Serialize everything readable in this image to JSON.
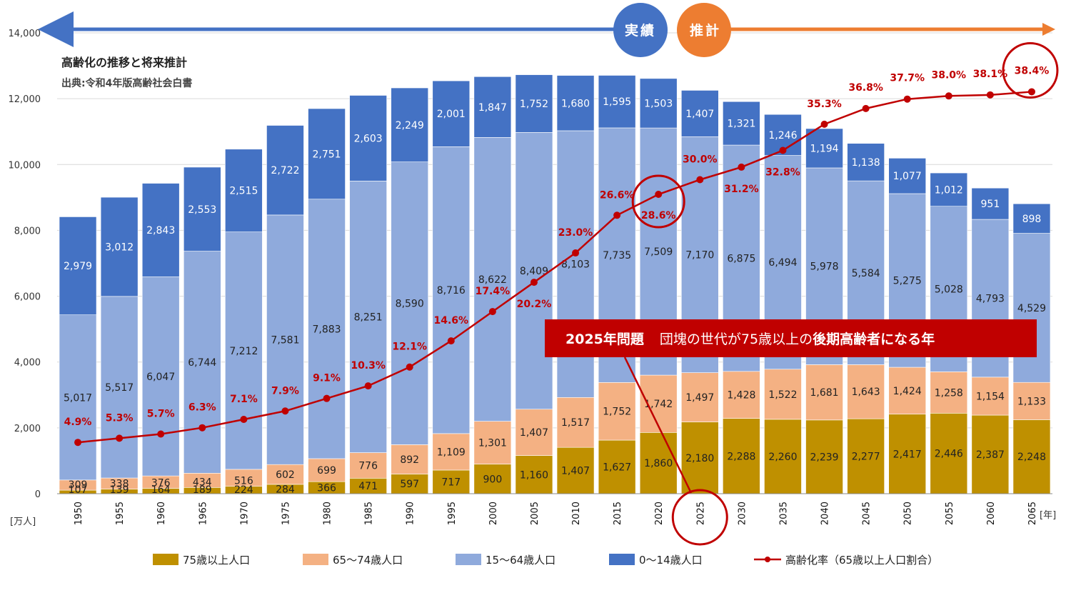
{
  "chart_data": {
    "type": "bar",
    "stacked": true,
    "title": "高齢化の推移と将来推計",
    "subtitle": "出典:令和4年版高齢社会白書",
    "y_unit_label": "[万人]",
    "x_unit_label": "[年]",
    "ylim": [
      0,
      14000
    ],
    "yticks": [
      "0",
      "2,000",
      "4,000",
      "6,000",
      "8,000",
      "10,000",
      "12,000",
      "14,000"
    ],
    "ytick_values": [
      0,
      2000,
      4000,
      6000,
      8000,
      10000,
      12000,
      14000
    ],
    "categories": [
      "1950",
      "1955",
      "1960",
      "1965",
      "1970",
      "1975",
      "1980",
      "1985",
      "1990",
      "1995",
      "2000",
      "2005",
      "2010",
      "2015",
      "2020",
      "2025",
      "2030",
      "2035",
      "2040",
      "2045",
      "2050",
      "2055",
      "2060",
      "2065"
    ],
    "series": [
      {
        "name": "75歳以上人口",
        "color": "#bf9000",
        "values": [
          107,
          139,
          164,
          189,
          224,
          284,
          366,
          471,
          597,
          717,
          900,
          1160,
          1407,
          1627,
          1860,
          2180,
          2288,
          2260,
          2239,
          2277,
          2417,
          2446,
          2387,
          2248
        ],
        "labels": [
          "107",
          "139",
          "164",
          "189",
          "224",
          "284",
          "366",
          "471",
          "597",
          "717",
          "900",
          "1,160",
          "1,407",
          "1,627",
          "1,860",
          "2,180",
          "2,288",
          "2,260",
          "2,239",
          "2,277",
          "2,417",
          "2,446",
          "2,387",
          "2,248"
        ]
      },
      {
        "name": "65～74歳人口",
        "color": "#f4b183",
        "values": [
          309,
          338,
          376,
          434,
          516,
          602,
          699,
          776,
          892,
          1109,
          1301,
          1407,
          1517,
          1752,
          1742,
          1497,
          1428,
          1522,
          1681,
          1643,
          1424,
          1258,
          1154,
          1133
        ],
        "labels": [
          "309",
          "338",
          "376",
          "434",
          "516",
          "602",
          "699",
          "776",
          "892",
          "1,109",
          "1,301",
          "1,407",
          "1,517",
          "1,752",
          "1,742",
          "1,497",
          "1,428",
          "1,522",
          "1,681",
          "1,643",
          "1,424",
          "1,258",
          "1,154",
          "1,133"
        ]
      },
      {
        "name": "15～64歳人口",
        "color": "#8faadc",
        "values": [
          5017,
          5517,
          6047,
          6744,
          7212,
          7581,
          7883,
          8251,
          8590,
          8716,
          8622,
          8409,
          8103,
          7735,
          7509,
          7170,
          6875,
          6494,
          5978,
          5584,
          5275,
          5028,
          4793,
          4529
        ],
        "labels": [
          "5,017",
          "5,517",
          "6,047",
          "6,744",
          "7,212",
          "7,581",
          "7,883",
          "8,251",
          "8,590",
          "8,716",
          "8,622",
          "8,409",
          "8,103",
          "7,735",
          "7,509",
          "7,170",
          "6,875",
          "6,494",
          "5,978",
          "5,584",
          "5,275",
          "5,028",
          "4,793",
          "4,529"
        ]
      },
      {
        "name": "0～14歳人口",
        "color": "#4472c4",
        "values": [
          2979,
          3012,
          2843,
          2553,
          2515,
          2722,
          2751,
          2603,
          2249,
          2001,
          1847,
          1752,
          1680,
          1595,
          1503,
          1407,
          1321,
          1246,
          1194,
          1138,
          1077,
          1012,
          951,
          898
        ],
        "labels": [
          "2,979",
          "3,012",
          "2,843",
          "2,553",
          "2,515",
          "2,722",
          "2,751",
          "2,603",
          "2,249",
          "2,001",
          "1,847",
          "1,752",
          "1,680",
          "1,595",
          "1,503",
          "1,407",
          "1,321",
          "1,246",
          "1,194",
          "1,138",
          "1,077",
          "1,012",
          "951",
          "898"
        ]
      }
    ],
    "line_series": {
      "name": "高齢化率（65歳以上人口割合）",
      "color": "#c00000",
      "values": [
        4.9,
        5.3,
        5.7,
        6.3,
        7.1,
        7.9,
        9.1,
        10.3,
        12.1,
        14.6,
        17.4,
        20.2,
        23.0,
        26.6,
        28.6,
        30.0,
        31.2,
        32.8,
        35.3,
        36.8,
        37.7,
        38.0,
        38.1,
        38.4
      ],
      "labels": [
        "4.9%",
        "5.3%",
        "5.7%",
        "6.3%",
        "7.1%",
        "7.9%",
        "9.1%",
        "10.3%",
        "12.1%",
        "14.6%",
        "17.4%",
        "20.2%",
        "23.0%",
        "26.6%",
        "28.6%",
        "30.0%",
        "31.2%",
        "32.8%",
        "35.3%",
        "36.8%",
        "37.7%",
        "38.0%",
        "38.1%",
        "38.4%"
      ]
    },
    "period_labels": {
      "actual": "実績",
      "projection": "推計"
    },
    "banner": {
      "bold_part": "2025年問題",
      "text_part": "団塊の世代が75歳以上の",
      "bold_part2": "後期高齢者になる年"
    },
    "highlighted_categories": [
      "2020",
      "2025",
      "2065"
    ]
  }
}
